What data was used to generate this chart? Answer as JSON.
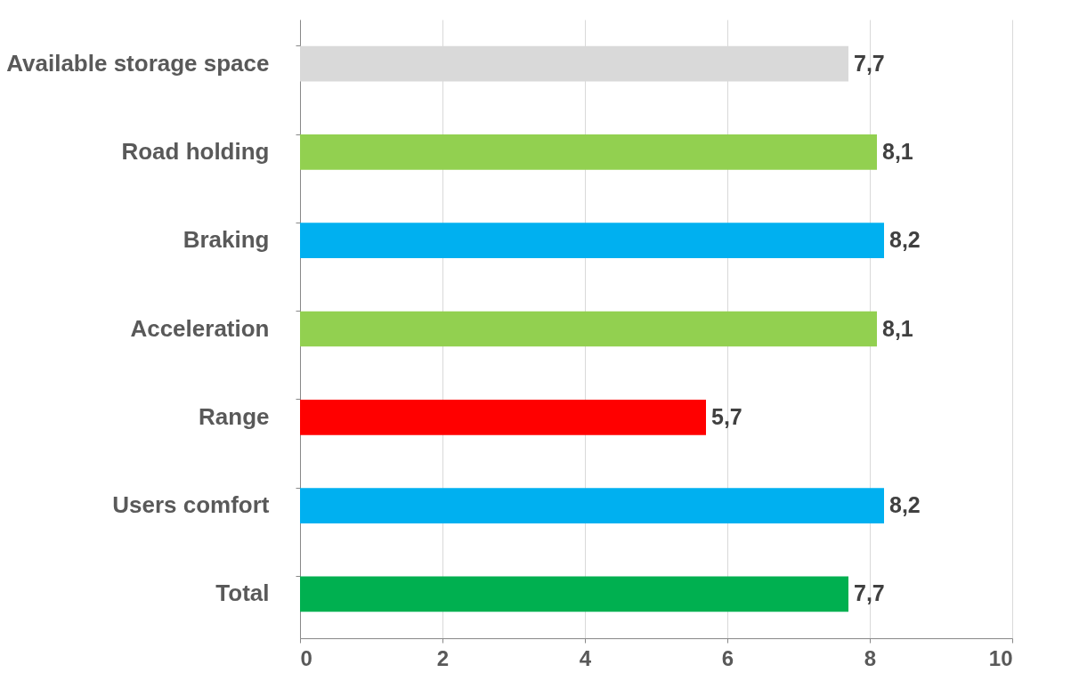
{
  "chart_data": {
    "type": "bar",
    "orientation": "horizontal",
    "categories": [
      "Available storage space",
      "Road holding",
      "Braking",
      "Acceleration",
      "Range",
      "Users comfort",
      "Total"
    ],
    "values": [
      7.7,
      8.1,
      8.2,
      8.1,
      5.7,
      8.2,
      7.7
    ],
    "colors": [
      "#d9d9d9",
      "#92d050",
      "#00b0f0",
      "#92d050",
      "#ff0000",
      "#00b0f0",
      "#00b050"
    ],
    "value_labels": [
      "7,7",
      "8,1",
      "8,2",
      "8,1",
      "5,7",
      "8,2",
      "7,7"
    ],
    "xlim": [
      0,
      10
    ],
    "xticks": [
      0,
      2,
      4,
      6,
      8,
      10
    ],
    "grid": "x"
  }
}
